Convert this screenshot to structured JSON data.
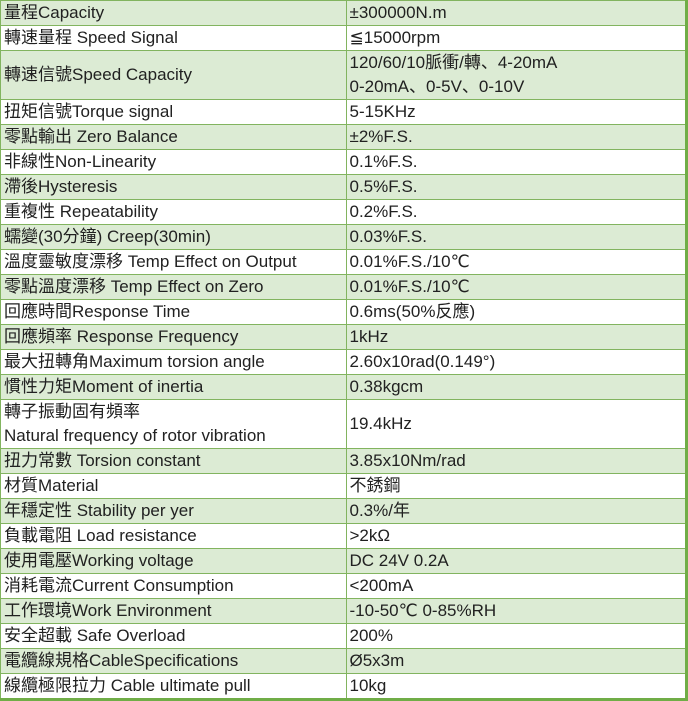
{
  "table": {
    "rows": [
      {
        "label": "量程Capacity",
        "value": "±300000N.m"
      },
      {
        "label": "轉速量程 Speed Signal",
        "value": "≦15000rpm"
      },
      {
        "label": "轉速信號Speed Capacity",
        "value": "120/60/10脈衝/轉、4-20mA\n0-20mA、0-5V、0-10V"
      },
      {
        "label": "扭矩信號Torque signal",
        "value": "5-15KHz"
      },
      {
        "label": "零點輸出 Zero Balance",
        "value": "±2%F.S."
      },
      {
        "label": "非線性Non-Linearity",
        "value": "0.1%F.S."
      },
      {
        "label": "滯後Hysteresis",
        "value": "0.5%F.S."
      },
      {
        "label": "重複性 Repeatability",
        "value": "0.2%F.S."
      },
      {
        "label": "蠕變(30分鐘) Creep(30min)",
        "value": "0.03%F.S."
      },
      {
        "label": "溫度靈敏度漂移 Temp Effect on Output",
        "value": "0.01%F.S./10℃"
      },
      {
        "label": "零點溫度漂移 Temp Effect on Zero",
        "value": "0.01%F.S./10℃"
      },
      {
        "label": "回應時間Response Time",
        "value": "0.6ms(50%反應)"
      },
      {
        "label": "回應頻率 Response Frequency",
        "value": "1kHz"
      },
      {
        "label": "最大扭轉角Maximum torsion angle",
        "value": "2.60x10rad(0.149°)"
      },
      {
        "label": "慣性力矩Moment of inertia",
        "value": "0.38kgcm"
      },
      {
        "label": "轉子振動固有頻率\nNatural frequency of rotor vibration",
        "value": "19.4kHz"
      },
      {
        "label": "扭力常數 Torsion constant",
        "value": "3.85x10Nm/rad"
      },
      {
        "label": "材質Material",
        "value": "不銹鋼"
      },
      {
        "label": "年穩定性 Stability per yer",
        "value": "0.3%/年"
      },
      {
        "label": "負載電阻 Load resistance",
        "value": ">2kΩ"
      },
      {
        "label": "使用電壓Working voltage",
        "value": "DC 24V 0.2A"
      },
      {
        "label": "消耗電流Current Consumption",
        "value": "<200mA"
      },
      {
        "label": "工作環境Work Environment",
        "value": "-10-50℃  0-85%RH"
      },
      {
        "label": "安全超載 Safe Overload",
        "value": "200%"
      },
      {
        "label": "電纜線規格CableSpecifications",
        "value": "Ø5x3m"
      },
      {
        "label": "線纜極限拉力 Cable ultimate pull",
        "value": "10kg"
      }
    ]
  },
  "colors": {
    "row_green": "#dcebd4",
    "row_white": "#ffffff",
    "grid_green": "#82b45f",
    "outer_border_green": "#70ad47",
    "text": "#212121"
  }
}
